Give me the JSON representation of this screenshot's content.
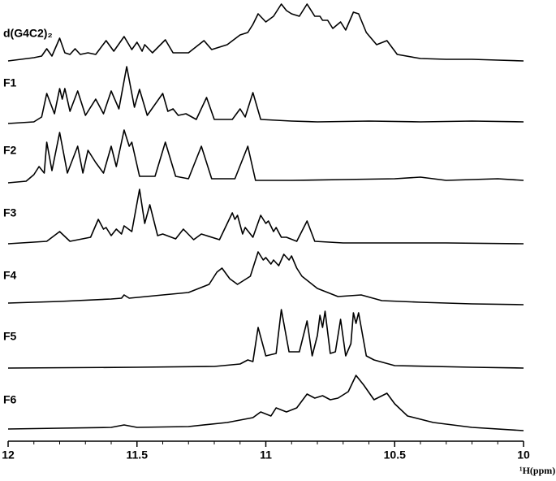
{
  "chart_data": {
    "type": "line",
    "xlabel": "¹H(ppm)",
    "xlim": [
      12,
      10
    ],
    "xticks": [
      12,
      11.5,
      11,
      10.5,
      10
    ],
    "xticks_minor": [
      11.9,
      11.8,
      11.7,
      11.6,
      11.4,
      11.3,
      11.2,
      11.1,
      10.9,
      10.8,
      10.7,
      10.6,
      10.4,
      10.3,
      10.2,
      10.1
    ],
    "color": "#000000",
    "series": [
      {
        "name": "d(G4C2)₂",
        "x": [
          12.0,
          11.9,
          11.87,
          11.85,
          11.83,
          11.8,
          11.78,
          11.76,
          11.74,
          11.72,
          11.69,
          11.66,
          11.62,
          11.59,
          11.55,
          11.52,
          11.5,
          11.48,
          11.47,
          11.44,
          11.39,
          11.36,
          11.3,
          11.24,
          11.21,
          11.15,
          11.1,
          11.07,
          11.05,
          11.03,
          11.0,
          10.97,
          10.94,
          10.92,
          10.9,
          10.87,
          10.84,
          10.81,
          10.79,
          10.78,
          10.76,
          10.74,
          10.71,
          10.69,
          10.66,
          10.64,
          10.61,
          10.57,
          10.53,
          10.49,
          10.4,
          10.3,
          10.2,
          10.1,
          10.0
        ],
        "values": [
          0,
          4,
          6,
          15,
          6,
          28,
          10,
          8,
          15,
          8,
          10,
          8,
          25,
          12,
          30,
          14,
          23,
          12,
          20,
          10,
          26,
          10,
          10,
          25,
          14,
          20,
          32,
          35,
          45,
          58,
          48,
          55,
          70,
          62,
          58,
          55,
          70,
          55,
          55,
          50,
          50,
          40,
          48,
          38,
          60,
          58,
          35,
          20,
          25,
          8,
          3,
          2,
          2,
          1,
          0
        ]
      },
      {
        "name": "F1",
        "x": [
          12.0,
          11.9,
          11.87,
          11.85,
          11.82,
          11.8,
          11.79,
          11.78,
          11.76,
          11.73,
          11.7,
          11.66,
          11.63,
          11.6,
          11.57,
          11.54,
          11.51,
          11.49,
          11.46,
          11.4,
          11.38,
          11.36,
          11.34,
          11.31,
          11.27,
          11.23,
          11.2,
          11.13,
          11.1,
          11.08,
          11.05,
          11.02,
          10.9,
          10.8,
          10.6,
          10.4,
          10.2,
          10.0
        ],
        "values": [
          0,
          2,
          8,
          37,
          12,
          43,
          30,
          43,
          15,
          40,
          10,
          30,
          12,
          40,
          18,
          70,
          20,
          42,
          10,
          37,
          15,
          18,
          10,
          12,
          5,
          32,
          5,
          5,
          18,
          8,
          38,
          5,
          3,
          2,
          3,
          2,
          3,
          2
        ]
      },
      {
        "name": "F2",
        "x": [
          12.0,
          11.93,
          11.9,
          11.88,
          11.86,
          11.85,
          11.83,
          11.8,
          11.77,
          11.73,
          11.71,
          11.69,
          11.66,
          11.63,
          11.6,
          11.58,
          11.55,
          11.53,
          11.52,
          11.49,
          11.43,
          11.39,
          11.35,
          11.3,
          11.25,
          11.21,
          11.12,
          11.07,
          11.04,
          10.9,
          10.7,
          10.5,
          10.4,
          10.3,
          10.1,
          10.0
        ],
        "values": [
          0,
          2,
          10,
          20,
          12,
          50,
          15,
          62,
          12,
          45,
          12,
          40,
          25,
          12,
          45,
          20,
          65,
          45,
          50,
          8,
          8,
          50,
          8,
          5,
          45,
          5,
          5,
          45,
          3,
          3,
          4,
          5,
          7,
          3,
          5,
          3
        ]
      },
      {
        "name": "F3",
        "x": [
          12.0,
          11.85,
          11.8,
          11.76,
          11.68,
          11.65,
          11.63,
          11.62,
          11.6,
          11.58,
          11.56,
          11.55,
          11.52,
          11.49,
          11.47,
          11.45,
          11.42,
          11.4,
          11.35,
          11.32,
          11.28,
          11.25,
          11.18,
          11.13,
          11.12,
          11.11,
          11.09,
          11.08,
          11.05,
          11.02,
          11.0,
          10.99,
          10.97,
          10.96,
          10.94,
          10.92,
          10.88,
          10.84,
          10.81,
          10.7,
          10.5,
          10.3,
          10.0
        ],
        "values": [
          0,
          3,
          15,
          3,
          8,
          30,
          18,
          20,
          10,
          18,
          12,
          22,
          15,
          67,
          25,
          48,
          10,
          12,
          6,
          18,
          5,
          12,
          5,
          38,
          30,
          35,
          12,
          20,
          8,
          35,
          25,
          28,
          15,
          20,
          8,
          8,
          3,
          28,
          3,
          1,
          1,
          1,
          0
        ]
      },
      {
        "name": "F4",
        "x": [
          12.0,
          11.8,
          11.6,
          11.56,
          11.55,
          11.53,
          11.4,
          11.3,
          11.22,
          11.19,
          11.17,
          11.14,
          11.11,
          11.06,
          11.03,
          11.01,
          11.0,
          10.98,
          10.97,
          10.95,
          10.93,
          10.91,
          10.9,
          10.88,
          10.86,
          10.8,
          10.72,
          10.63,
          10.55,
          10.4,
          10.2,
          10.0
        ],
        "values": [
          2,
          4,
          7,
          8,
          12,
          8,
          12,
          15,
          25,
          40,
          45,
          32,
          25,
          35,
          65,
          55,
          58,
          50,
          55,
          48,
          62,
          55,
          60,
          45,
          35,
          20,
          10,
          12,
          5,
          3,
          1,
          0
        ]
      },
      {
        "name": "F5",
        "x": [
          12.0,
          11.5,
          11.2,
          11.1,
          11.07,
          11.05,
          11.03,
          11.0,
          10.96,
          10.94,
          10.91,
          10.87,
          10.84,
          10.82,
          10.8,
          10.79,
          10.78,
          10.77,
          10.75,
          10.73,
          10.71,
          10.69,
          10.67,
          10.66,
          10.65,
          10.64,
          10.61,
          10.58,
          10.5,
          10.2,
          10.0
        ],
        "values": [
          0,
          1,
          2,
          5,
          10,
          8,
          50,
          15,
          18,
          72,
          20,
          20,
          58,
          15,
          40,
          65,
          50,
          70,
          18,
          20,
          60,
          15,
          30,
          68,
          55,
          68,
          15,
          10,
          3,
          1,
          0
        ]
      },
      {
        "name": "F6",
        "x": [
          12.0,
          11.8,
          11.6,
          11.55,
          11.5,
          11.3,
          11.15,
          11.05,
          11.02,
          10.98,
          10.96,
          10.92,
          10.88,
          10.84,
          10.81,
          10.78,
          10.75,
          10.72,
          10.68,
          10.65,
          10.62,
          10.58,
          10.53,
          10.5,
          10.45,
          10.35,
          10.2,
          10.0
        ],
        "values": [
          4,
          5,
          6,
          9,
          6,
          7,
          12,
          18,
          25,
          20,
          30,
          25,
          30,
          47,
          42,
          45,
          40,
          42,
          50,
          70,
          58,
          40,
          48,
          35,
          20,
          12,
          6,
          2
        ]
      }
    ]
  }
}
